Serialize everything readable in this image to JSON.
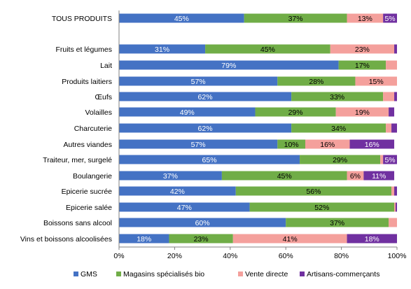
{
  "chart_data": {
    "type": "bar",
    "orientation": "horizontal",
    "stacked": true,
    "categories": [
      "TOUS PRODUITS",
      "Fruits et légumes",
      "Lait",
      "Produits laitiers",
      "Œufs",
      "Volailles",
      "Charcuterie",
      "Autres viandes",
      "Traiteur, mer, surgelé",
      "Boulangerie",
      "Epicerie sucrée",
      "Epicerie salée",
      "Boissons sans alcool",
      "Vins et boissons alcoolisées"
    ],
    "series": [
      {
        "name": "GMS",
        "color": "#4472C4",
        "label_color": "#ffffff",
        "values": [
          45,
          31,
          79,
          57,
          62,
          49,
          62,
          57,
          65,
          37,
          42,
          47,
          60,
          18
        ],
        "labels": [
          "45%",
          "31%",
          "79%",
          "57%",
          "62%",
          "49%",
          "62%",
          "57%",
          "65%",
          "37%",
          "42%",
          "47%",
          "60%",
          "18%"
        ]
      },
      {
        "name": "Magasins spécialisés bio",
        "color": "#70AD47",
        "label_color": "#000000",
        "values": [
          37,
          45,
          17,
          28,
          33,
          29,
          34,
          10,
          29,
          45,
          56,
          52,
          37,
          23
        ],
        "labels": [
          "37%",
          "45%",
          "17%",
          "28%",
          "33%",
          "29%",
          "34%",
          "10%",
          "29%",
          "45%",
          "56%",
          "52%",
          "37%",
          "23%"
        ]
      },
      {
        "name": "Vente directe",
        "color": "#F4A09C",
        "label_color": "#000000",
        "values": [
          13,
          23,
          4,
          15,
          4,
          19,
          2,
          16,
          1,
          6,
          1,
          0.5,
          3,
          41
        ],
        "labels": [
          "13%",
          "23%",
          "",
          "15%",
          "",
          "19%",
          "",
          "16%",
          "",
          "6%",
          "",
          "",
          "",
          "41%"
        ]
      },
      {
        "name": "Artisans-commerçants",
        "color": "#7030A0",
        "label_color": "#ffffff",
        "values": [
          5,
          1,
          0,
          0,
          1,
          2,
          2,
          16,
          5,
          11,
          1,
          0.5,
          0,
          18
        ],
        "labels": [
          "5%",
          "",
          "",
          "",
          "",
          "",
          "",
          "16%",
          "5%",
          "11%",
          "",
          "",
          "",
          "18%"
        ]
      }
    ],
    "xaxis": {
      "min": 0,
      "max": 100,
      "ticks": [
        0,
        20,
        40,
        60,
        80,
        100
      ],
      "tick_labels": [
        "0%",
        "20%",
        "40%",
        "60%",
        "80%",
        "100%"
      ]
    },
    "gap_after_first_category": true,
    "grid": false,
    "legend": "bottom"
  }
}
